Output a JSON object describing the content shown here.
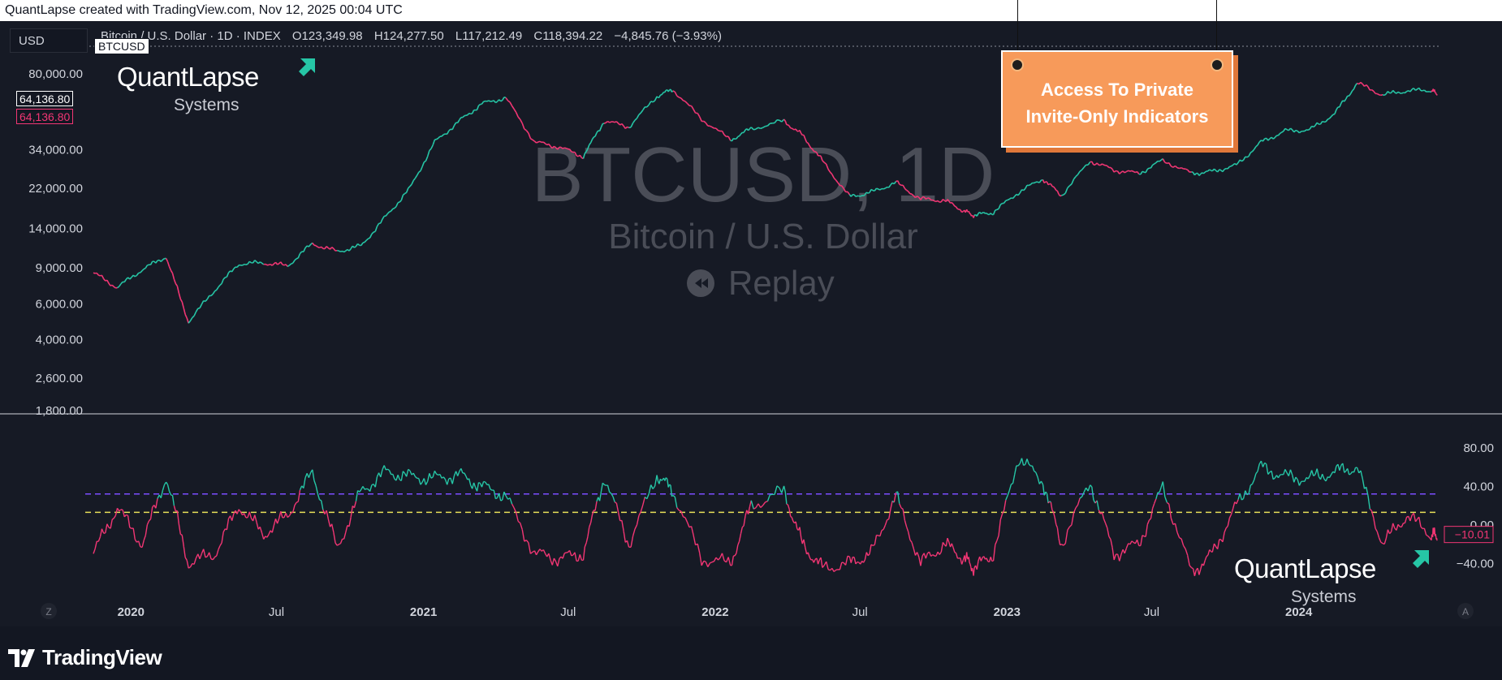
{
  "header": {
    "attribution": "QuantLapse created with TradingView.com, Nov 12, 2025 00:04 UTC"
  },
  "toolbar": {
    "currency": "USD",
    "symbol_tag": "BTCUSD"
  },
  "ohlc": {
    "title": "Bitcoin / U.S. Dollar · 1D · INDEX",
    "open": "O123,349.98",
    "high": "H124,277.50",
    "low": "L117,212.49",
    "close": "C118,394.22",
    "change": "−4,845.76 (−3.93%)"
  },
  "price_tags": {
    "white": "64,136.80",
    "pink": "64,136.80"
  },
  "watermark": {
    "symbol": "BTCUSD, 1D",
    "name": "Bitcoin / U.S. Dollar",
    "replay": "Replay"
  },
  "branding": {
    "name": "QuantLapse",
    "sub": "Systems"
  },
  "promo": {
    "line1": "Access To Private",
    "line2": "Invite-Only Indicators"
  },
  "footer": {
    "brand": "TradingView"
  },
  "buttons": {
    "left": "Z",
    "right": "A"
  },
  "colors": {
    "bull": "#26c6a6",
    "bear": "#f23674",
    "background": "#161a25",
    "upper_band": "#7b4dff",
    "lower_band": "#e8e05a",
    "promo": "#f79a5a"
  },
  "chart_data": [
    {
      "type": "line",
      "scale": "log",
      "ylim": [
        1800,
        110000
      ],
      "yticks": [
        "80,000.00",
        "34,000.00",
        "22,000.00",
        "14,000.00",
        "9,000.00",
        "6,000.00",
        "4,000.00",
        "2,600.00",
        "1,800.00"
      ],
      "ytick_values": [
        80000,
        34000,
        22000,
        14000,
        9000,
        6000,
        4000,
        2600,
        1800
      ],
      "xlim": [
        "2019-11-15",
        "2024-06-22"
      ],
      "xticks": [
        {
          "label": "2020",
          "date": "2020-01-01",
          "bold": true
        },
        {
          "label": "Jul",
          "date": "2020-07-01",
          "bold": false
        },
        {
          "label": "2021",
          "date": "2021-01-01",
          "bold": true
        },
        {
          "label": "Jul",
          "date": "2021-07-01",
          "bold": false
        },
        {
          "label": "2022",
          "date": "2022-01-01",
          "bold": true
        },
        {
          "label": "Jul",
          "date": "2022-07-01",
          "bold": false
        },
        {
          "label": "2023",
          "date": "2023-01-01",
          "bold": true
        },
        {
          "label": "Jul",
          "date": "2023-07-01",
          "bold": false
        },
        {
          "label": "2024",
          "date": "2024-01-01",
          "bold": true
        }
      ],
      "series": [
        {
          "x": [
            "2019-11-15",
            "2019-12-15",
            "2020-01-15",
            "2020-02-14",
            "2020-03-13",
            "2020-04-15",
            "2020-05-15",
            "2020-06-15",
            "2020-07-15",
            "2020-08-15",
            "2020-09-15",
            "2020-10-15",
            "2020-11-15",
            "2020-12-15",
            "2021-01-15",
            "2021-02-15",
            "2021-03-15",
            "2021-04-14",
            "2021-05-20",
            "2021-06-20",
            "2021-07-20",
            "2021-08-15",
            "2021-09-15",
            "2021-10-20",
            "2021-11-09",
            "2021-12-15",
            "2022-01-20",
            "2022-02-15",
            "2022-03-28",
            "2022-04-20",
            "2022-05-15",
            "2022-06-18",
            "2022-07-15",
            "2022-08-15",
            "2022-09-15",
            "2022-10-15",
            "2022-11-09",
            "2022-11-21",
            "2022-12-15",
            "2023-01-15",
            "2023-02-15",
            "2023-03-10",
            "2023-04-15",
            "2023-05-15",
            "2023-06-15",
            "2023-07-15",
            "2023-08-20",
            "2023-09-15",
            "2023-10-15",
            "2023-11-15",
            "2023-12-15",
            "2024-01-15",
            "2024-02-15",
            "2024-03-14",
            "2024-04-15",
            "2024-05-15",
            "2024-06-15",
            "2024-06-22"
          ],
          "values": [
            8500,
            7200,
            8800,
            10200,
            4900,
            7000,
            9400,
            9500,
            9200,
            11800,
            10800,
            11500,
            16000,
            22000,
            37000,
            47000,
            57000,
            61000,
            37000,
            35000,
            31500,
            47000,
            44000,
            62000,
            67000,
            48000,
            38000,
            43000,
            47000,
            40000,
            30000,
            20000,
            21000,
            23500,
            19500,
            19200,
            17000,
            16200,
            16800,
            21000,
            24500,
            20300,
            30000,
            27000,
            26000,
            30200,
            26000,
            26600,
            28500,
            37000,
            42000,
            42500,
            51000,
            72000,
            63000,
            66000,
            66500,
            64136.8
          ]
        }
      ]
    },
    {
      "type": "line",
      "ylim": [
        -60,
        95
      ],
      "yticks": [
        "80.00",
        "40.00",
        "0.00",
        "−40.00"
      ],
      "ytick_values": [
        80,
        40,
        0,
        -40
      ],
      "hlines": [
        {
          "value": 32,
          "color": "#7b4dff"
        },
        {
          "value": 13,
          "color": "#e8e05a"
        }
      ],
      "last_value": "−10.01",
      "series": [
        {
          "x": [
            "2019-11-15",
            "2019-12-15",
            "2020-01-15",
            "2020-02-14",
            "2020-03-13",
            "2020-04-15",
            "2020-05-15",
            "2020-06-15",
            "2020-07-15",
            "2020-08-15",
            "2020-09-15",
            "2020-10-15",
            "2020-11-15",
            "2020-12-15",
            "2021-01-15",
            "2021-02-15",
            "2021-03-15",
            "2021-04-14",
            "2021-05-20",
            "2021-06-20",
            "2021-07-20",
            "2021-08-15",
            "2021-09-15",
            "2021-10-20",
            "2021-11-09",
            "2021-12-15",
            "2022-01-20",
            "2022-02-15",
            "2022-03-28",
            "2022-04-20",
            "2022-05-15",
            "2022-06-18",
            "2022-07-15",
            "2022-08-15",
            "2022-09-15",
            "2022-10-15",
            "2022-11-09",
            "2022-11-21",
            "2022-12-15",
            "2023-01-15",
            "2023-02-15",
            "2023-03-10",
            "2023-04-15",
            "2023-05-15",
            "2023-06-15",
            "2023-07-15",
            "2023-08-20",
            "2023-09-15",
            "2023-10-15",
            "2023-11-15",
            "2023-12-15",
            "2024-01-15",
            "2024-02-15",
            "2024-03-14",
            "2024-04-15",
            "2024-05-15",
            "2024-06-15",
            "2024-06-22"
          ],
          "values": [
            -30,
            18,
            -20,
            50,
            -40,
            -30,
            20,
            -10,
            10,
            55,
            -25,
            35,
            55,
            50,
            48,
            52,
            40,
            30,
            -30,
            -35,
            -30,
            50,
            -20,
            52,
            35,
            -35,
            -40,
            20,
            35,
            -20,
            -45,
            -40,
            -30,
            30,
            -40,
            -20,
            -35,
            -45,
            -30,
            70,
            45,
            -20,
            45,
            -30,
            -20,
            40,
            -50,
            -30,
            20,
            60,
            50,
            48,
            55,
            60,
            -20,
            10,
            -10,
            -10.01
          ]
        }
      ]
    }
  ]
}
